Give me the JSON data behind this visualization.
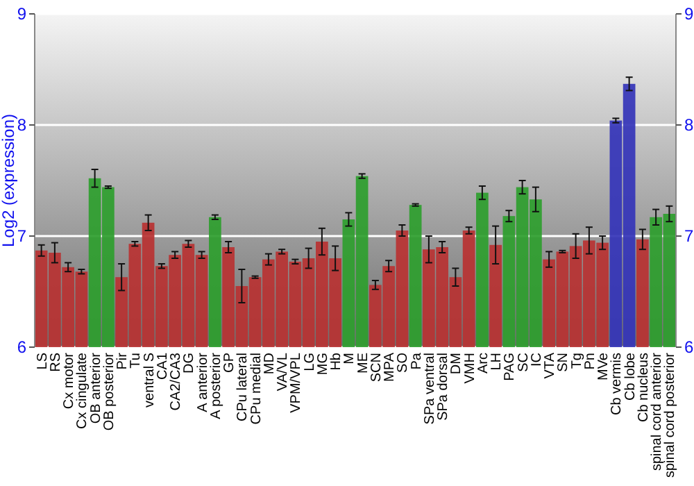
{
  "chart_data": {
    "type": "bar",
    "ylabel": "Log2 (expression)",
    "categories": [
      "LS",
      "RS",
      "Cx motor",
      "Cx cingulate",
      "OB anterior",
      "OB posterior",
      "Pir",
      "Tu",
      "ventral S",
      "CA1",
      "CA2/CA3",
      "DG",
      "A anterior",
      "A posterior",
      "GP",
      "CPu lateral",
      "CPu medial",
      "MD",
      "VA/VL",
      "VPM/VPL",
      "LG",
      "MG",
      "Hb",
      "M",
      "ME",
      "SCN",
      "MPA",
      "SO",
      "Pa",
      "SPa ventral",
      "SPa dorsal",
      "DM",
      "VMH",
      "Arc",
      "LH",
      "PAG",
      "SC",
      "IC",
      "VTA",
      "SN",
      "Tg",
      "Pn",
      "MVe",
      "Cb vermis",
      "Cb lobe",
      "Cb nucleus",
      "spinal cord anterior",
      "spinal cord posterior"
    ],
    "values": [
      6.87,
      6.85,
      6.72,
      6.68,
      7.52,
      7.44,
      6.63,
      6.93,
      7.12,
      6.73,
      6.83,
      6.93,
      6.83,
      7.17,
      6.9,
      6.55,
      6.63,
      6.79,
      6.86,
      6.77,
      6.8,
      6.95,
      6.8,
      7.15,
      7.54,
      6.56,
      6.73,
      7.05,
      7.28,
      6.88,
      6.9,
      6.63,
      7.05,
      7.39,
      6.92,
      7.18,
      7.44,
      7.33,
      6.79,
      6.86,
      6.91,
      6.96,
      6.94,
      8.04,
      8.37,
      6.97,
      7.17,
      7.2
    ],
    "errors": [
      0.05,
      0.09,
      0.04,
      0.02,
      0.08,
      0.01,
      0.12,
      0.02,
      0.07,
      0.02,
      0.03,
      0.03,
      0.03,
      0.02,
      0.05,
      0.15,
      0.01,
      0.05,
      0.02,
      0.02,
      0.09,
      0.12,
      0.11,
      0.06,
      0.02,
      0.04,
      0.05,
      0.05,
      0.01,
      0.12,
      0.05,
      0.08,
      0.03,
      0.06,
      0.17,
      0.05,
      0.06,
      0.11,
      0.07,
      0.01,
      0.11,
      0.12,
      0.06,
      0.02,
      0.06,
      0.09,
      0.07,
      0.07
    ],
    "colors": [
      "#b83232",
      "#b83232",
      "#b83232",
      "#b83232",
      "#2e9e2e",
      "#2e9e2e",
      "#b83232",
      "#b83232",
      "#b83232",
      "#b83232",
      "#b83232",
      "#b83232",
      "#b83232",
      "#2e9e2e",
      "#b83232",
      "#b83232",
      "#b83232",
      "#b83232",
      "#b83232",
      "#b83232",
      "#b83232",
      "#b83232",
      "#b83232",
      "#2e9e2e",
      "#2e9e2e",
      "#b83232",
      "#b83232",
      "#b83232",
      "#2e9e2e",
      "#b83232",
      "#b83232",
      "#b83232",
      "#b83232",
      "#2e9e2e",
      "#b83232",
      "#2e9e2e",
      "#2e9e2e",
      "#2e9e2e",
      "#b83232",
      "#b83232",
      "#b83232",
      "#b83232",
      "#b83232",
      "#3434b8",
      "#3434b8",
      "#b83232",
      "#2e9e2e",
      "#2e9e2e"
    ],
    "ylim": [
      6,
      9
    ],
    "yticks": [
      6,
      7,
      8,
      9
    ],
    "y2lim": [
      6,
      9
    ],
    "y2ticks": [
      6,
      7,
      8,
      9
    ],
    "grid": "y"
  }
}
